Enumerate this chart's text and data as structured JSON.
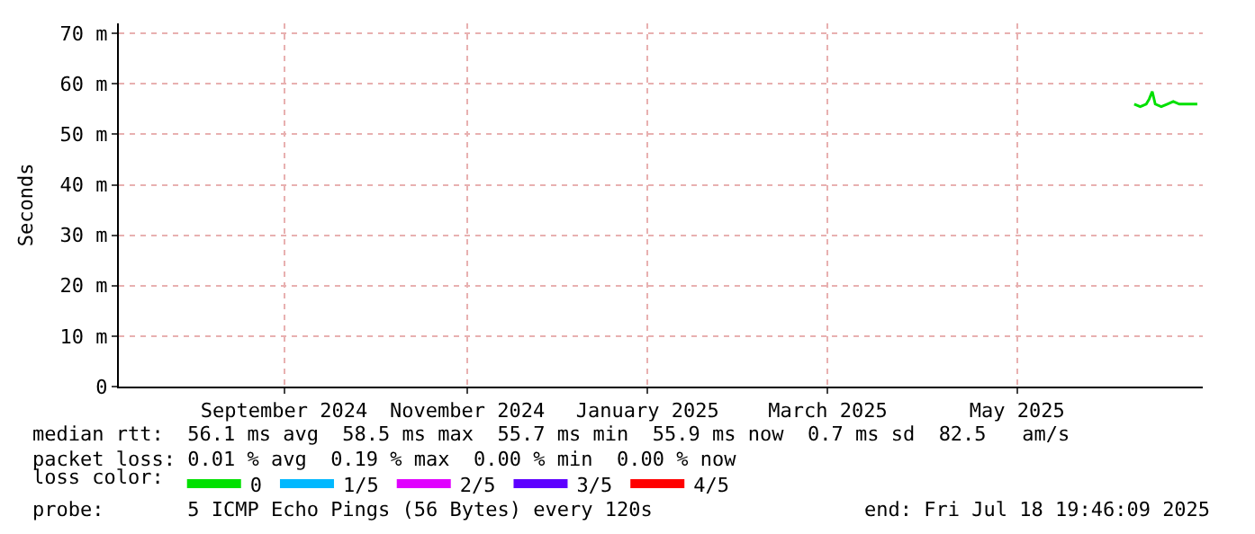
{
  "chart_data": {
    "type": "line",
    "ylabel": "Seconds",
    "legend_title": "loss color:",
    "legend": "bottom",
    "grid": true,
    "marker": "none",
    "line_style": "solid",
    "xlim": [
      "2024-07-23",
      "2025-07-18T19:46"
    ],
    "xticks": [
      {
        "value": "2024-09-16",
        "label": "September 2024"
      },
      {
        "value": "2024-11-16",
        "label": "November 2024"
      },
      {
        "value": "2025-01-15",
        "label": "January 2025"
      },
      {
        "value": "2025-03-16",
        "label": "March 2025"
      },
      {
        "value": "2025-05-18",
        "label": "May 2025"
      }
    ],
    "ylim": [
      0,
      72
    ],
    "yticks": [
      0,
      {
        "value": 10,
        "label": "10 m"
      },
      {
        "value": 20,
        "label": "20 m"
      },
      {
        "value": 30,
        "label": "30 m"
      },
      {
        "value": 40,
        "label": "40 m"
      },
      {
        "value": 50,
        "label": "50 m"
      },
      {
        "value": 60,
        "label": "60 m"
      },
      {
        "value": 70,
        "label": "70 m"
      }
    ],
    "x": [
      "2025-06-26",
      "2025-06-28",
      "2025-06-30",
      "2025-07-01",
      "2025-07-02",
      "2025-07-03",
      "2025-07-05",
      "2025-07-07",
      "2025-07-09",
      "2025-07-11",
      "2025-07-13",
      "2025-07-15",
      "2025-07-17"
    ],
    "series": [
      {
        "name": "0",
        "color": "#00e000",
        "values": [
          56,
          55.5,
          56,
          57,
          58.5,
          56,
          55.5,
          56,
          56.5,
          56,
          56,
          56,
          56
        ]
      },
      {
        "name": "1/5",
        "color": "#00b8ff",
        "values": [
          null,
          null,
          null,
          null,
          null,
          null,
          null,
          null,
          null,
          null,
          null,
          null,
          null
        ]
      },
      {
        "name": "2/5",
        "color": "#e000ff",
        "values": [
          null,
          null,
          null,
          null,
          null,
          null,
          null,
          null,
          null,
          null,
          null,
          null,
          null
        ]
      },
      {
        "name": "3/5",
        "color": "#5d00ff",
        "values": [
          null,
          null,
          null,
          null,
          null,
          null,
          null,
          null,
          null,
          null,
          null,
          null,
          null
        ]
      },
      {
        "name": "4/5",
        "color": "#ff0000",
        "values": [
          null,
          null,
          null,
          null,
          null,
          null,
          null,
          null,
          null,
          null,
          null,
          null,
          null
        ]
      }
    ],
    "annotations": [
      "median rtt:  56.1 ms avg  58.5 ms max  55.7 ms min  55.9 ms now  0.7 ms sd  82.5   am/s",
      "packet loss: 0.01 % avg  0.19 % max  0.00 % min  0.00 % now",
      "probe:       5 ICMP Echo Pings (56 Bytes) every 120s",
      "end: Fri Jul 18 19:46:09 2025"
    ]
  }
}
